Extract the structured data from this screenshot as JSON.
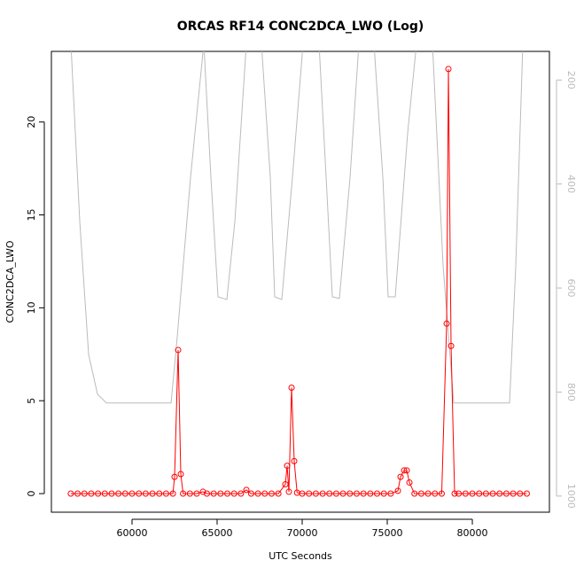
{
  "chart_data": {
    "type": "line",
    "title": "ORCAS RF14 CONC2DCA_LWO (Log)",
    "x_label": "UTC Seconds",
    "y_label": "CONC2DCA_LWO",
    "xlim": [
      55260,
      84530
    ],
    "ylim": [
      -1.0,
      23.8
    ],
    "y2lim": [
      1031,
      145
    ],
    "xticks": [
      60000,
      65000,
      70000,
      75000,
      80000
    ],
    "yticks": [
      0,
      5,
      10,
      15,
      20
    ],
    "y2ticks": [
      200,
      400,
      600,
      800,
      1000
    ],
    "series": [
      {
        "color": "#ff0000",
        "markers": true,
        "x": [
          56400,
          56800,
          57200,
          57600,
          58000,
          58400,
          58800,
          59200,
          59600,
          60000,
          60400,
          60800,
          61200,
          61600,
          62000,
          62400,
          62500,
          62708,
          62865,
          63000,
          63400,
          63800,
          64167,
          64400,
          64800,
          65200,
          65600,
          66000,
          66400,
          66719,
          67000,
          67400,
          67800,
          68200,
          68600,
          69010,
          69115,
          69219,
          69375,
          69531,
          69700,
          70000,
          70400,
          70800,
          71200,
          71600,
          72000,
          72400,
          72800,
          73200,
          73600,
          74000,
          74400,
          74800,
          75200,
          75625,
          75781,
          75990,
          76146,
          76302,
          76600,
          77000,
          77400,
          77800,
          78200,
          78490,
          78594,
          78750,
          78958,
          79200,
          79600,
          80000,
          80400,
          80800,
          81200,
          81600,
          82000,
          82400,
          82800,
          83200
        ],
        "values": [
          0,
          0,
          0,
          0,
          0,
          0,
          0,
          0,
          0,
          0,
          0,
          0,
          0,
          0,
          0,
          0,
          0.9,
          7.73,
          1.05,
          0,
          0,
          0,
          0.1,
          0,
          0,
          0,
          0,
          0,
          0,
          0.2,
          0,
          0,
          0,
          0,
          0,
          0.5,
          1.5,
          0.1,
          5.7,
          1.75,
          0.05,
          0,
          0,
          0,
          0,
          0,
          0,
          0,
          0,
          0,
          0,
          0,
          0,
          0,
          0,
          0.15,
          0.9,
          1.25,
          1.25,
          0.6,
          0,
          0,
          0,
          0,
          0,
          9.15,
          22.85,
          7.95,
          0,
          0,
          0,
          0,
          0,
          0,
          0,
          0,
          0,
          0,
          0,
          0
        ]
      },
      {
        "color": "#bbbbbb",
        "axis": "y2",
        "markers": false,
        "x": [
          56406,
          56927,
          57448,
          57969,
          58490,
          62292,
          62656,
          63438,
          64219,
          64635,
          65052,
          65573,
          66042,
          66719,
          67604,
          68125,
          68385,
          68802,
          69427,
          70052,
          70990,
          71406,
          71771,
          72188,
          72813,
          73333,
          74219,
          74740,
          75052,
          75469,
          76198,
          76719,
          77656,
          78281,
          78906,
          82188,
          82552,
          82969
        ],
        "values": [
          130,
          472,
          728,
          804,
          821,
          821,
          694,
          387,
          130,
          387,
          617,
          622,
          472,
          130,
          130,
          387,
          617,
          622,
          387,
          130,
          130,
          387,
          617,
          620,
          387,
          130,
          130,
          387,
          617,
          617,
          302,
          130,
          130,
          557,
          821,
          821,
          557,
          130
        ]
      }
    ]
  }
}
